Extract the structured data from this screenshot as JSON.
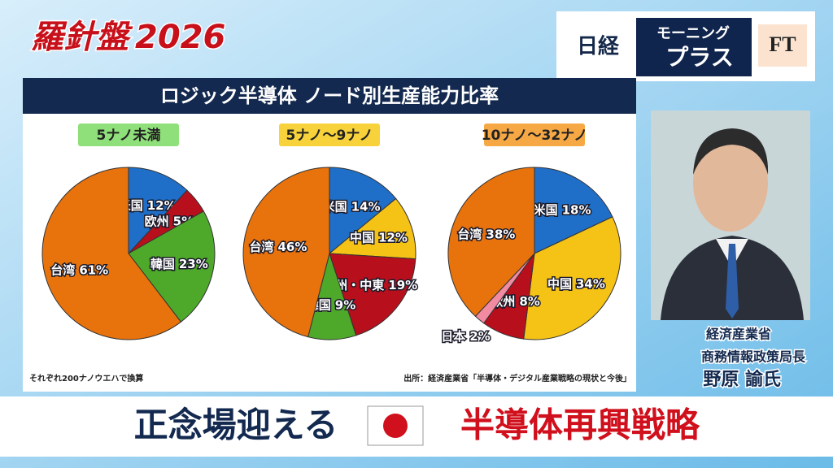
{
  "program": {
    "title": "羅針盤",
    "year": "2026"
  },
  "logo": {
    "left": "日経",
    "middle_top": "モーニング",
    "middle_bottom": "プラス",
    "right": "FT"
  },
  "panel": {
    "title": "ロジック半導体 ノード別生産能力比率",
    "note": "それぞれ200ナノウエハで換算",
    "source": "出所：経済産業省「半導体・デジタル産業戦略の現状と今後」"
  },
  "person": {
    "org": "経済産業省",
    "role": "商務情報政策局長",
    "name": "野原 諭氏"
  },
  "caption": {
    "left": "正念場迎える",
    "right": "半導体再興戦略"
  },
  "chart_data": [
    {
      "type": "pie",
      "title": "5ナノ未満",
      "title_color": "#8fe07a",
      "categories": [
        "米国",
        "欧州",
        "韓国",
        "台湾"
      ],
      "values": [
        12,
        5,
        23,
        61
      ],
      "value_labels": [
        "12%",
        "5%",
        "23%",
        "61%"
      ],
      "colors": [
        "#1f6fc8",
        "#b80f1c",
        "#4ea82a",
        "#e8720c"
      ]
    },
    {
      "type": "pie",
      "title": "5ナノ〜9ナノ",
      "title_color": "#f7d23a",
      "categories": [
        "米国",
        "中国",
        "欧州・中東",
        "韓国",
        "台湾"
      ],
      "values": [
        14,
        12,
        19,
        9,
        46
      ],
      "value_labels": [
        "14%",
        "12%",
        "19%",
        "9%",
        "46%"
      ],
      "colors": [
        "#1f6fc8",
        "#f5c216",
        "#b80f1c",
        "#4ea82a",
        "#e8720c"
      ]
    },
    {
      "type": "pie",
      "title": "10ナノ〜32ナノ",
      "title_color": "#f6a844",
      "categories": [
        "米国",
        "中国",
        "欧州",
        "日本",
        "台湾"
      ],
      "values": [
        18,
        34,
        8,
        2,
        38
      ],
      "value_labels": [
        "18%",
        "34%",
        "8%",
        "2%",
        "38%"
      ],
      "colors": [
        "#1f6fc8",
        "#f5c216",
        "#b80f1c",
        "#f28aa2",
        "#e8720c"
      ]
    }
  ]
}
